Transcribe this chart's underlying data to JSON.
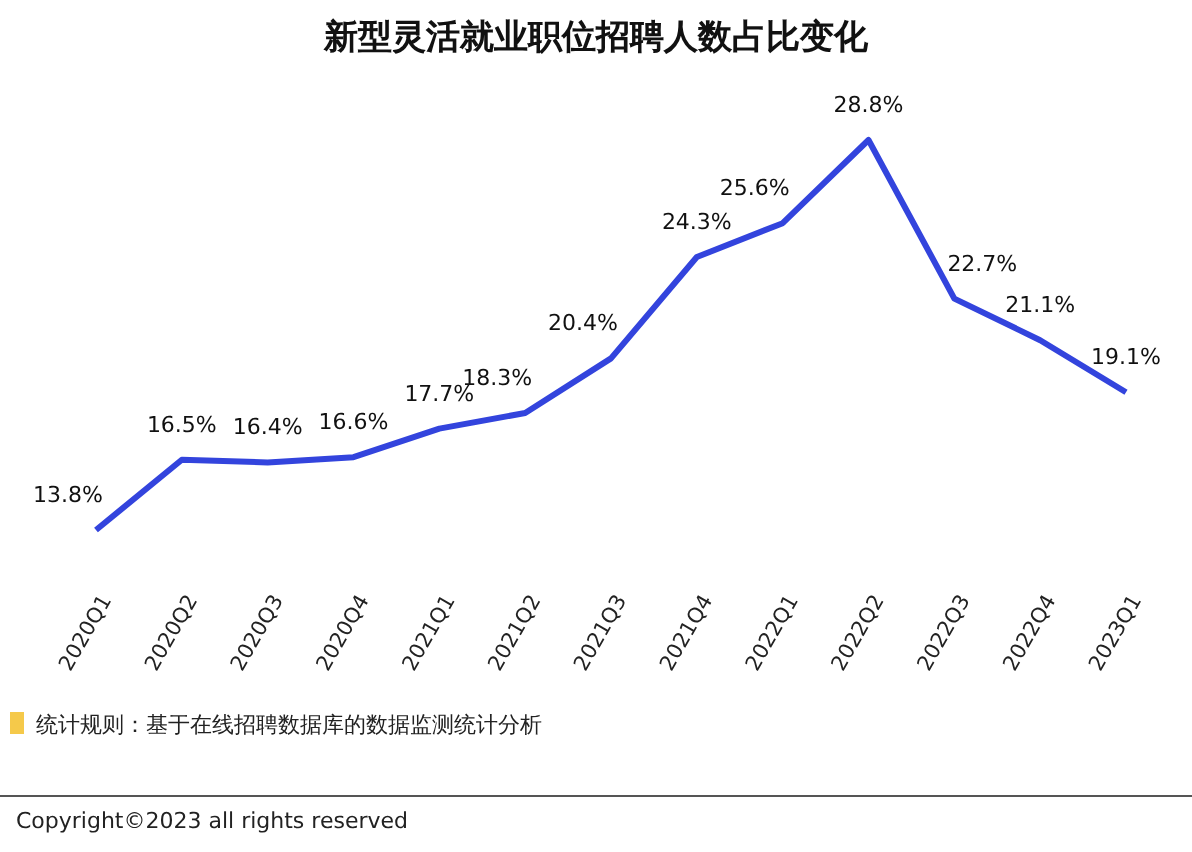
{
  "chart_data": {
    "type": "line",
    "title": "新型灵活就业职位招聘人数占比变化",
    "categories": [
      "2020Q1",
      "2020Q2",
      "2020Q3",
      "2020Q4",
      "2021Q1",
      "2021Q2",
      "2021Q3",
      "2021Q4",
      "2022Q1",
      "2022Q2",
      "2022Q3",
      "2022Q4",
      "2023Q1"
    ],
    "values": [
      13.8,
      16.5,
      16.4,
      16.6,
      17.7,
      18.3,
      20.4,
      24.3,
      25.6,
      28.8,
      22.7,
      21.1,
      19.1
    ],
    "color": "#3344dd",
    "value_labels": [
      "13.8%",
      "16.5%",
      "16.4%",
      "16.6%",
      "17.7%",
      "18.3%",
      "20.4%",
      "24.3%",
      "25.6%",
      "28.8%",
      "22.7%",
      "21.1%",
      "19.1%"
    ],
    "annotations": [
      "统计规则：基于在线招聘数据库的数据监测统计分析",
      "Copyright©2023 all rights reserved"
    ]
  }
}
